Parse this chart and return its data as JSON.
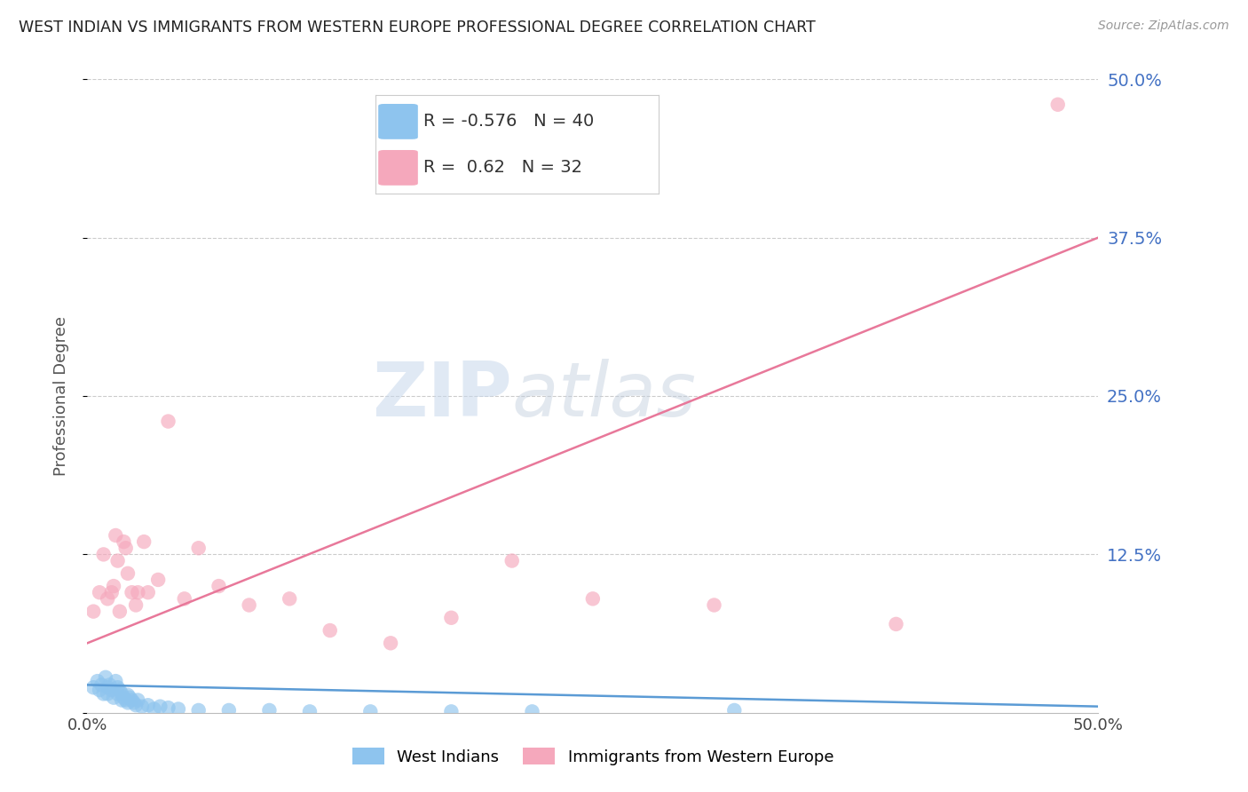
{
  "title": "WEST INDIAN VS IMMIGRANTS FROM WESTERN EUROPE PROFESSIONAL DEGREE CORRELATION CHART",
  "source": "Source: ZipAtlas.com",
  "ylabel": "Professional Degree",
  "xlim": [
    0.0,
    0.5
  ],
  "ylim": [
    0.0,
    0.5
  ],
  "blue_R": -0.576,
  "blue_N": 40,
  "pink_R": 0.62,
  "pink_N": 32,
  "blue_label": "West Indians",
  "pink_label": "Immigrants from Western Europe",
  "blue_color": "#8EC4EE",
  "pink_color": "#F5A8BC",
  "blue_line_color": "#5B9BD5",
  "pink_line_color": "#E8789A",
  "watermark_zip": "ZIP",
  "watermark_atlas": "atlas",
  "background_color": "#FFFFFF",
  "blue_x": [
    0.003,
    0.005,
    0.006,
    0.007,
    0.008,
    0.009,
    0.01,
    0.01,
    0.011,
    0.012,
    0.013,
    0.014,
    0.015,
    0.015,
    0.016,
    0.017,
    0.017,
    0.018,
    0.019,
    0.02,
    0.02,
    0.021,
    0.022,
    0.023,
    0.024,
    0.025,
    0.027,
    0.03,
    0.033,
    0.036,
    0.04,
    0.045,
    0.055,
    0.07,
    0.09,
    0.11,
    0.14,
    0.18,
    0.22,
    0.32
  ],
  "blue_y": [
    0.02,
    0.025,
    0.018,
    0.022,
    0.015,
    0.028,
    0.02,
    0.015,
    0.022,
    0.018,
    0.012,
    0.025,
    0.02,
    0.015,
    0.018,
    0.01,
    0.015,
    0.012,
    0.01,
    0.014,
    0.008,
    0.012,
    0.01,
    0.008,
    0.006,
    0.01,
    0.005,
    0.006,
    0.003,
    0.005,
    0.004,
    0.003,
    0.002,
    0.002,
    0.002,
    0.001,
    0.001,
    0.001,
    0.001,
    0.002
  ],
  "pink_x": [
    0.003,
    0.006,
    0.008,
    0.01,
    0.012,
    0.013,
    0.014,
    0.015,
    0.016,
    0.018,
    0.019,
    0.02,
    0.022,
    0.024,
    0.025,
    0.028,
    0.03,
    0.035,
    0.04,
    0.048,
    0.055,
    0.065,
    0.08,
    0.1,
    0.12,
    0.15,
    0.18,
    0.21,
    0.25,
    0.31,
    0.4,
    0.48
  ],
  "pink_y": [
    0.08,
    0.095,
    0.125,
    0.09,
    0.095,
    0.1,
    0.14,
    0.12,
    0.08,
    0.135,
    0.13,
    0.11,
    0.095,
    0.085,
    0.095,
    0.135,
    0.095,
    0.105,
    0.23,
    0.09,
    0.13,
    0.1,
    0.085,
    0.09,
    0.065,
    0.055,
    0.075,
    0.12,
    0.09,
    0.085,
    0.07,
    0.48
  ],
  "pink_line_x0": 0.0,
  "pink_line_y0": 0.055,
  "pink_line_x1": 0.5,
  "pink_line_y1": 0.375,
  "blue_line_x0": 0.0,
  "blue_line_y0": 0.022,
  "blue_line_x1": 0.5,
  "blue_line_y1": 0.005
}
